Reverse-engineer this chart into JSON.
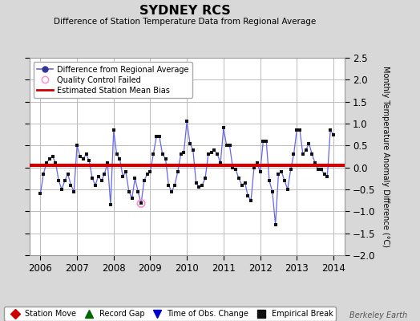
{
  "title": "SYDNEY RCS",
  "subtitle": "Difference of Station Temperature Data from Regional Average",
  "ylabel": "Monthly Temperature Anomaly Difference (°C)",
  "xlabel_ticks": [
    2006,
    2007,
    2008,
    2009,
    2010,
    2011,
    2012,
    2013,
    2014
  ],
  "xlim": [
    2005.7,
    2014.3
  ],
  "ylim": [
    -2.0,
    2.5
  ],
  "yticks": [
    -2.0,
    -1.5,
    -1.0,
    -0.5,
    0.0,
    0.5,
    1.0,
    1.5,
    2.0,
    2.5
  ],
  "bias_line_y": 0.05,
  "bias_color": "#cc0000",
  "line_color": "#6666ee",
  "marker_color": "#111111",
  "qc_fail_x": 2008.75,
  "qc_fail_y": -0.82,
  "background_color": "#d8d8d8",
  "plot_bg_color": "#ffffff",
  "grid_color": "#bbbbbb",
  "watermark": "Berkeley Earth",
  "legend_items": [
    {
      "label": "Difference from Regional Average",
      "color": "#4444cc",
      "type": "line_marker"
    },
    {
      "label": "Quality Control Failed",
      "color": "#ff88cc",
      "type": "circle"
    },
    {
      "label": "Estimated Station Mean Bias",
      "color": "#cc0000",
      "type": "line"
    }
  ],
  "bottom_legend": [
    {
      "label": "Station Move",
      "color": "#cc0000",
      "marker": "D"
    },
    {
      "label": "Record Gap",
      "color": "#006600",
      "marker": "^"
    },
    {
      "label": "Time of Obs. Change",
      "color": "#0000cc",
      "marker": "v"
    },
    {
      "label": "Empirical Break",
      "color": "#111111",
      "marker": "s"
    }
  ],
  "data_x": [
    2006.0,
    2006.083,
    2006.167,
    2006.25,
    2006.333,
    2006.417,
    2006.5,
    2006.583,
    2006.667,
    2006.75,
    2006.833,
    2006.917,
    2007.0,
    2007.083,
    2007.167,
    2007.25,
    2007.333,
    2007.417,
    2007.5,
    2007.583,
    2007.667,
    2007.75,
    2007.833,
    2007.917,
    2008.0,
    2008.083,
    2008.167,
    2008.25,
    2008.333,
    2008.417,
    2008.5,
    2008.583,
    2008.667,
    2008.75,
    2008.833,
    2008.917,
    2009.0,
    2009.083,
    2009.167,
    2009.25,
    2009.333,
    2009.417,
    2009.5,
    2009.583,
    2009.667,
    2009.75,
    2009.833,
    2009.917,
    2010.0,
    2010.083,
    2010.167,
    2010.25,
    2010.333,
    2010.417,
    2010.5,
    2010.583,
    2010.667,
    2010.75,
    2010.833,
    2010.917,
    2011.0,
    2011.083,
    2011.167,
    2011.25,
    2011.333,
    2011.417,
    2011.5,
    2011.583,
    2011.667,
    2011.75,
    2011.833,
    2011.917,
    2012.0,
    2012.083,
    2012.167,
    2012.25,
    2012.333,
    2012.417,
    2012.5,
    2012.583,
    2012.667,
    2012.75,
    2012.833,
    2012.917,
    2013.0,
    2013.083,
    2013.167,
    2013.25,
    2013.333,
    2013.417,
    2013.5,
    2013.583,
    2013.667,
    2013.75,
    2013.833,
    2013.917,
    2014.0
  ],
  "data_y": [
    -0.6,
    -0.15,
    0.1,
    0.2,
    0.25,
    0.1,
    -0.3,
    -0.5,
    -0.3,
    -0.15,
    -0.4,
    -0.55,
    0.5,
    0.25,
    0.2,
    0.3,
    0.15,
    -0.25,
    -0.4,
    -0.2,
    -0.3,
    -0.15,
    0.1,
    -0.85,
    0.85,
    0.3,
    0.2,
    -0.2,
    -0.1,
    -0.55,
    -0.7,
    -0.25,
    -0.55,
    -0.82,
    -0.3,
    -0.15,
    -0.1,
    0.3,
    0.7,
    0.7,
    0.3,
    0.2,
    -0.4,
    -0.55,
    -0.4,
    -0.1,
    0.3,
    0.35,
    1.05,
    0.55,
    0.4,
    -0.35,
    -0.45,
    -0.4,
    -0.25,
    0.3,
    0.35,
    0.4,
    0.3,
    0.1,
    0.9,
    0.5,
    0.5,
    0.0,
    -0.05,
    -0.25,
    -0.4,
    -0.35,
    -0.65,
    -0.75,
    0.0,
    0.1,
    -0.1,
    0.6,
    0.6,
    -0.3,
    -0.55,
    -1.3,
    -0.15,
    -0.1,
    -0.3,
    -0.5,
    -0.05,
    0.3,
    0.85,
    0.85,
    0.3,
    0.4,
    0.55,
    0.3,
    0.1,
    -0.05,
    -0.05,
    -0.15,
    -0.2,
    0.85,
    0.75
  ]
}
